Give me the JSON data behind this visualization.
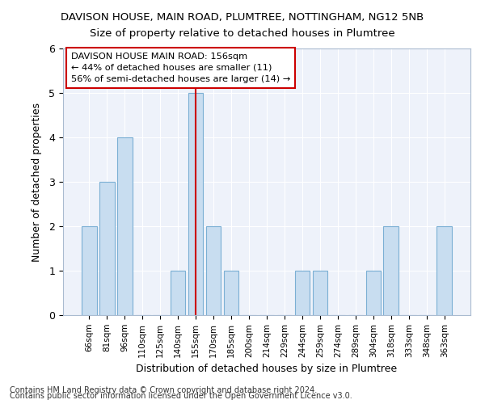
{
  "title": "DAVISON HOUSE, MAIN ROAD, PLUMTREE, NOTTINGHAM, NG12 5NB",
  "subtitle": "Size of property relative to detached houses in Plumtree",
  "xlabel": "Distribution of detached houses by size in Plumtree",
  "ylabel": "Number of detached properties",
  "categories": [
    "66sqm",
    "81sqm",
    "96sqm",
    "110sqm",
    "125sqm",
    "140sqm",
    "155sqm",
    "170sqm",
    "185sqm",
    "200sqm",
    "214sqm",
    "229sqm",
    "244sqm",
    "259sqm",
    "274sqm",
    "289sqm",
    "304sqm",
    "318sqm",
    "333sqm",
    "348sqm",
    "363sqm"
  ],
  "values": [
    2,
    3,
    4,
    0,
    0,
    1,
    5,
    2,
    1,
    0,
    0,
    0,
    1,
    1,
    0,
    0,
    1,
    2,
    0,
    0,
    2
  ],
  "bar_color": "#c8ddf0",
  "bar_edge_color": "#7bafd4",
  "highlight_index": 6,
  "highlight_line_color": "#cc0000",
  "annotation_line1": "DAVISON HOUSE MAIN ROAD: 156sqm",
  "annotation_line2": "← 44% of detached houses are smaller (11)",
  "annotation_line3": "56% of semi-detached houses are larger (14) →",
  "annotation_box_color": "#ffffff",
  "annotation_box_edge_color": "#cc0000",
  "ylim": [
    0,
    6
  ],
  "yticks": [
    0,
    1,
    2,
    3,
    4,
    5,
    6
  ],
  "footer_line1": "Contains HM Land Registry data © Crown copyright and database right 2024.",
  "footer_line2": "Contains public sector information licensed under the Open Government Licence v3.0.",
  "bg_color": "#ffffff",
  "plot_bg_color": "#eef2fa",
  "title_fontsize": 9.5,
  "subtitle_fontsize": 9.5,
  "grid_color": "#ffffff"
}
